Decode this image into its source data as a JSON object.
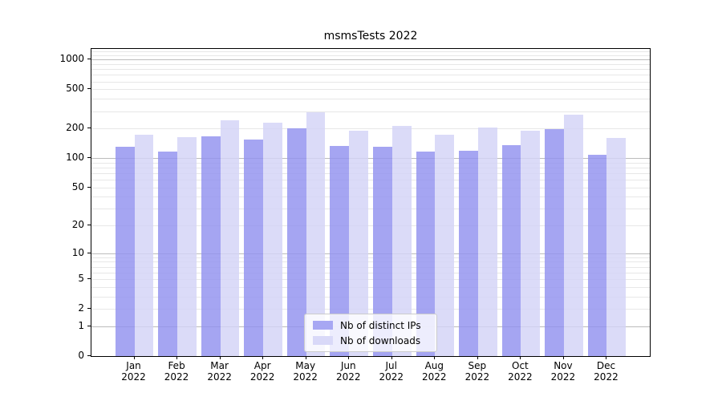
{
  "chart_data": {
    "type": "bar",
    "title": "msmsTests 2022",
    "categories": [
      "Jan 2022",
      "Feb 2022",
      "Mar 2022",
      "Apr 2022",
      "May 2022",
      "Jun 2022",
      "Jul 2022",
      "Aug 2022",
      "Sep 2022",
      "Oct 2022",
      "Nov 2022",
      "Dec 2022"
    ],
    "months": [
      "Jan",
      "Feb",
      "Mar",
      "Apr",
      "May",
      "Jun",
      "Jul",
      "Aug",
      "Sep",
      "Oct",
      "Nov",
      "Dec"
    ],
    "year": "2022",
    "series": [
      {
        "name": "Nb of distinct IPs",
        "values": [
          131,
          117,
          167,
          154,
          200,
          132,
          131,
          117,
          119,
          135,
          195,
          108
        ],
        "fill": "rgba(145,145,239,0.82)",
        "legend_color": "#a7a7f3"
      },
      {
        "name": "Nb of downloads",
        "values": [
          174,
          163,
          240,
          227,
          292,
          189,
          211,
          173,
          203,
          189,
          275,
          161
        ],
        "fill": "rgba(211,211,246,0.82)",
        "legend_color": "#d9d9f8"
      }
    ],
    "yscale": "log1p",
    "yticks": [
      1000,
      500,
      200,
      100,
      50,
      20,
      10,
      5,
      2,
      1,
      0
    ],
    "ylim": [
      0,
      1280
    ],
    "grid": {
      "major_values": [
        1,
        10,
        100,
        1000
      ],
      "major_color": "#bcbcbc",
      "minor_color": "#e7e7e7"
    },
    "legend_position": "lower center"
  }
}
